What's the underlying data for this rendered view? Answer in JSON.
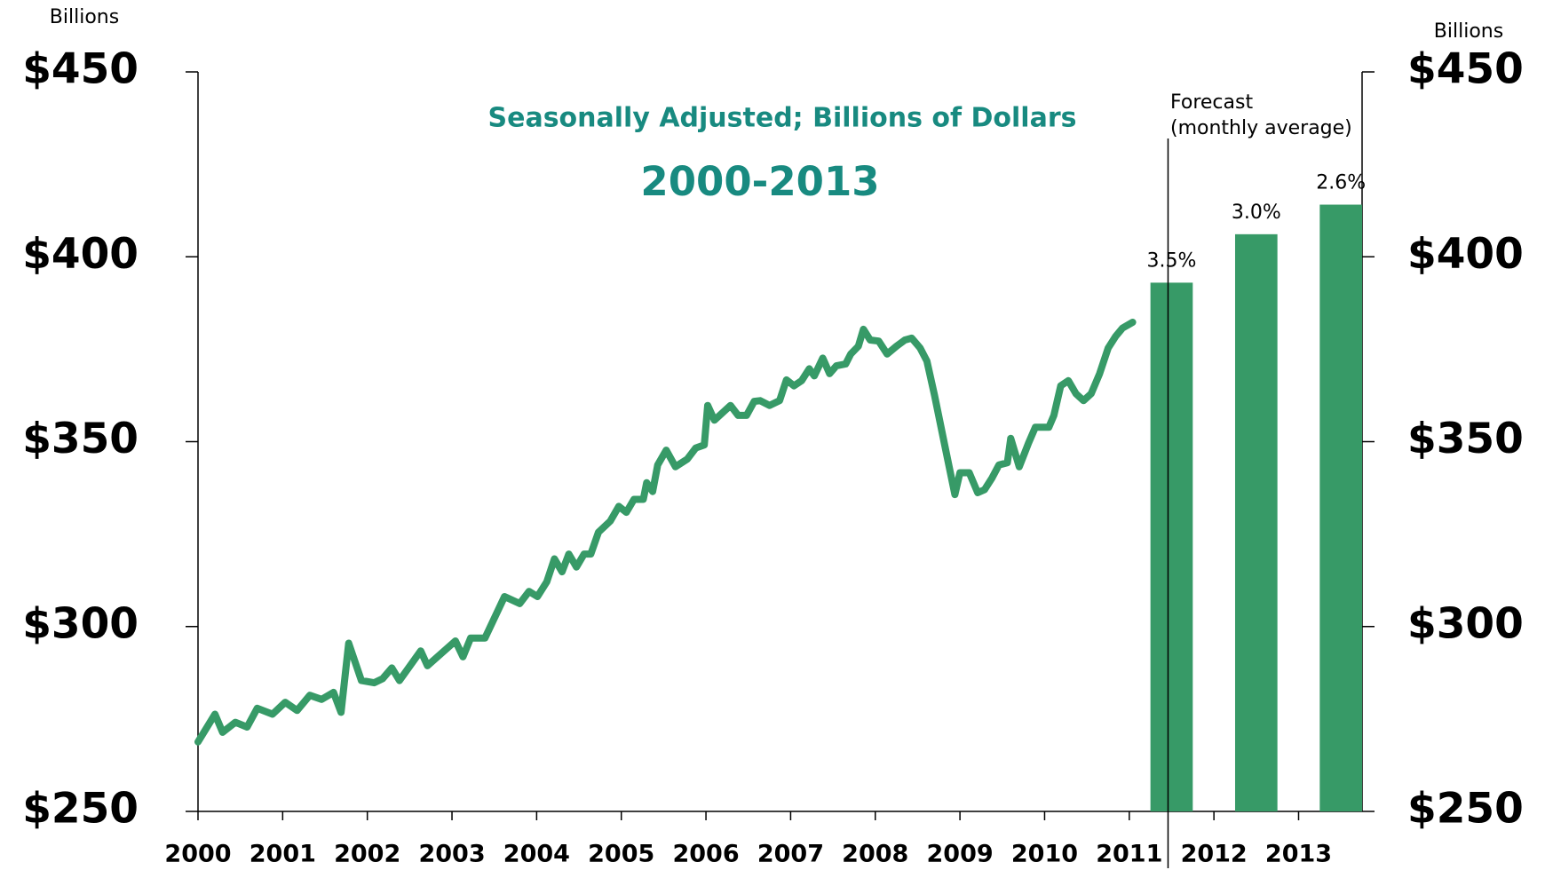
{
  "chart_data": {
    "type": "combo",
    "title": "2000-2013",
    "subtitle": "Seasonally Adjusted; Billions of Dollars",
    "y_label": "Billions",
    "y2_label": "Billions",
    "forecast_label": [
      "Forecast",
      "(monthly average)"
    ],
    "xlim": [
      2000,
      2013.75
    ],
    "xticks": [
      2000,
      2001,
      2002,
      2003,
      2004,
      2005,
      2006,
      2007,
      2008,
      2009,
      2010,
      2011,
      2012,
      2013
    ],
    "ylim": [
      250,
      450
    ],
    "yticks": [
      {
        "value": 250,
        "label": "$250"
      },
      {
        "value": 300,
        "label": "$300"
      },
      {
        "value": 350,
        "label": "$350"
      },
      {
        "value": 400,
        "label": "$400"
      },
      {
        "value": 450,
        "label": "$450"
      }
    ],
    "y2lim": [
      250,
      450
    ],
    "y2ticks": [
      {
        "value": 250,
        "label": "$250"
      },
      {
        "value": 300,
        "label": "$300"
      },
      {
        "value": 350,
        "label": "$350"
      },
      {
        "value": 400,
        "label": "$400"
      },
      {
        "value": 450,
        "label": "$450"
      }
    ],
    "series": [
      {
        "type": "line",
        "color": "#379a67",
        "x": [
          2000.0,
          2000.2,
          2000.29,
          2000.44,
          2000.58,
          2000.7,
          2000.88,
          2001.03,
          2001.17,
          2001.32,
          2001.46,
          2001.6,
          2001.69,
          2001.78,
          2001.93,
          2002.08,
          2002.18,
          2002.29,
          2002.38,
          2002.63,
          2002.71,
          2003.04,
          2003.13,
          2003.22,
          2003.39,
          2003.62,
          2003.8,
          2003.91,
          2004.01,
          2004.12,
          2004.21,
          2004.3,
          2004.38,
          2004.47,
          2004.56,
          2004.64,
          2004.73,
          2004.87,
          2004.97,
          2005.06,
          2005.15,
          2005.26,
          2005.3,
          2005.37,
          2005.43,
          2005.53,
          2005.64,
          2005.78,
          2005.88,
          2005.98,
          2006.02,
          2006.1,
          2006.29,
          2006.38,
          2006.48,
          2006.57,
          2006.64,
          2006.75,
          2006.87,
          2006.95,
          2007.04,
          2007.13,
          2007.22,
          2007.28,
          2007.38,
          2007.46,
          2007.54,
          2007.65,
          2007.71,
          2007.8,
          2007.86,
          2007.94,
          2008.04,
          2008.14,
          2008.25,
          2008.35,
          2008.43,
          2008.53,
          2008.61,
          2008.7,
          2008.82,
          2008.94,
          2009.0,
          2009.11,
          2009.21,
          2009.29,
          2009.38,
          2009.46,
          2009.56,
          2009.6,
          2009.7,
          2009.81,
          2009.89,
          2010.05,
          2010.11,
          2010.19,
          2010.28,
          2010.37,
          2010.46,
          2010.55,
          2010.65,
          2010.75,
          2010.84,
          2010.92,
          2011.04
        ],
        "values": [
          268.8,
          276.3,
          271.4,
          274.1,
          272.8,
          277.9,
          276.3,
          279.5,
          277.3,
          281.4,
          280.3,
          282.2,
          276.8,
          295.5,
          285.4,
          284.8,
          285.9,
          288.8,
          285.4,
          293.4,
          289.4,
          296.1,
          291.8,
          296.9,
          296.9,
          308.1,
          306.2,
          309.5,
          308.1,
          312.1,
          318.3,
          314.8,
          319.6,
          316.1,
          319.6,
          319.6,
          325.5,
          328.5,
          332.5,
          330.9,
          334.4,
          334.4,
          338.9,
          336.5,
          343.7,
          347.7,
          343.2,
          345.3,
          348.3,
          349.1,
          359.8,
          355.8,
          359.8,
          357.1,
          357.1,
          360.9,
          361.1,
          359.8,
          361.1,
          366.7,
          365.1,
          366.5,
          369.7,
          367.8,
          372.6,
          368.4,
          370.5,
          371.0,
          373.7,
          375.8,
          380.4,
          377.5,
          377.2,
          373.7,
          375.8,
          377.5,
          378.0,
          375.3,
          371.8,
          362.5,
          349.1,
          335.7,
          341.6,
          341.6,
          336.2,
          337.0,
          340.2,
          343.7,
          344.3,
          350.9,
          343.2,
          349.6,
          353.9,
          353.9,
          357.1,
          365.1,
          366.5,
          363.0,
          361.1,
          363.0,
          368.4,
          375.3,
          378.5,
          380.7,
          382.3
        ]
      },
      {
        "type": "bar",
        "color": "#379a67",
        "x": [
          2011.5,
          2012.5,
          2013.5
        ],
        "values": [
          393.0,
          406.1,
          414.1
        ],
        "annotations": [
          "3.5%",
          "3.0%",
          "2.6%"
        ]
      }
    ]
  }
}
